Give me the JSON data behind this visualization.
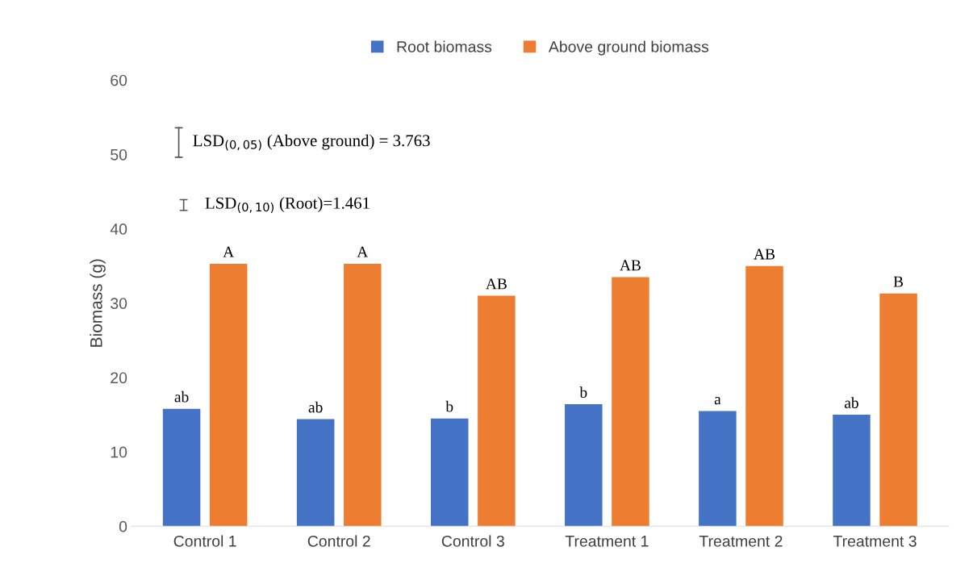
{
  "chart_data": {
    "type": "bar",
    "ylabel": "Biomass (g)",
    "categories": [
      "Control 1",
      "Control 2",
      "Control 3",
      "Treatment 1",
      "Treatment 2",
      "Treatment 3"
    ],
    "series": [
      {
        "name": "Root biomass",
        "color": "#4472c4",
        "values": [
          15.8,
          14.4,
          14.5,
          16.4,
          15.5,
          15.0
        ],
        "value_labels": [
          "ab",
          "ab",
          "b",
          "b",
          "a",
          "ab"
        ]
      },
      {
        "name": "Above ground biomass",
        "color": "#ed7d31",
        "values": [
          35.3,
          35.3,
          31.0,
          33.5,
          35.0,
          31.3
        ],
        "value_labels": [
          "A",
          "A",
          "AB",
          "AB",
          "AB",
          "B"
        ]
      }
    ],
    "ylim": [
      0,
      60
    ],
    "yticks": [
      0,
      10,
      20,
      30,
      40,
      50,
      60
    ],
    "grid": false,
    "legend": "top",
    "annotations": [
      "LSD$_{(0,05)}$ (Above ground) = 3.763",
      "LSD$_{(0,10)}$ (Root)=1.461"
    ]
  }
}
